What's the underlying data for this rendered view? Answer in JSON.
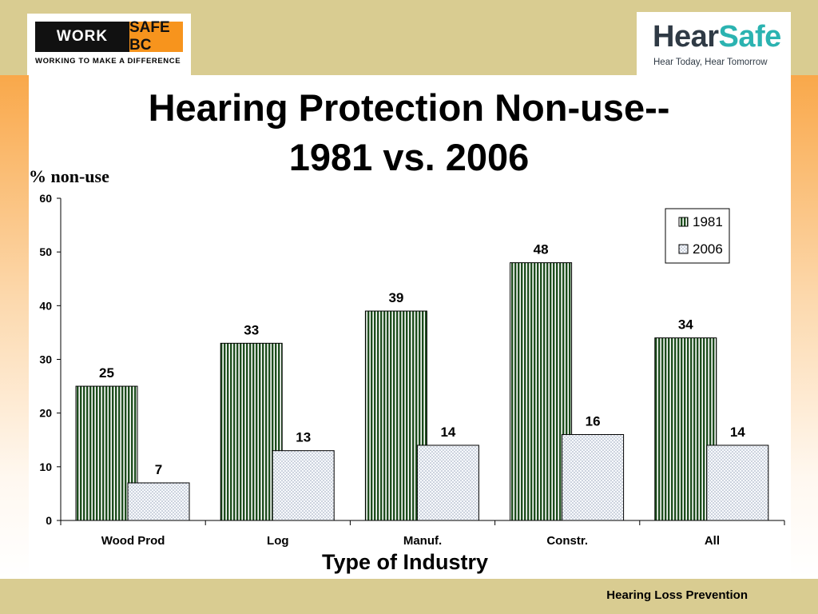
{
  "logos": {
    "left": {
      "brand_part1": "WORK",
      "brand_part2": "SAFE BC",
      "tagline": "WORKING TO MAKE A DIFFERENCE"
    },
    "right": {
      "brand_part1": "Hear",
      "brand_part2": "Safe",
      "tagline": "Hear Today, Hear Tomorrow"
    }
  },
  "footer": {
    "text": "Hearing Loss Prevention"
  },
  "colors": {
    "band": "#d9cc91",
    "series_1981": "#1d4d1d",
    "series_2006": "#c9d2e0"
  },
  "chart_data": {
    "type": "bar",
    "title_line1": "Hearing Protection Non-use--",
    "title_line2": "1981 vs. 2006",
    "ylabel": "% non-use",
    "xlabel": "Type of Industry",
    "ylim": [
      0,
      60
    ],
    "yticks": [
      "0",
      "10",
      "20",
      "30",
      "40",
      "50",
      "60"
    ],
    "categories": [
      "Wood Prod",
      "Log",
      "Manuf.",
      "Constr.",
      "All"
    ],
    "series": [
      {
        "name": "1981",
        "values": [
          25,
          33,
          39,
          48,
          34
        ],
        "pattern": "vertical-stripes"
      },
      {
        "name": "2006",
        "values": [
          7,
          13,
          14,
          16,
          14
        ],
        "pattern": "dots"
      }
    ],
    "grid": false,
    "legend": "top-right"
  }
}
